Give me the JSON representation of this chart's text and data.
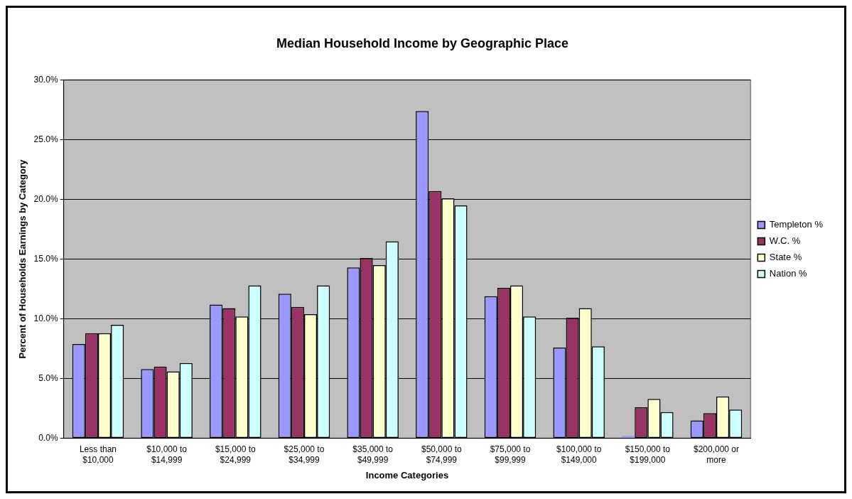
{
  "chart_data": {
    "type": "bar",
    "title": "Median Household Income by Geographic Place",
    "xlabel": "Income Categories",
    "ylabel": "Percent of Households Earnings by Category",
    "categories": [
      "Less than $10,000",
      "$10,000 to $14,999",
      "$15,000 to $24,999",
      "$25,000 to $34,999",
      "$35,000 to $49,999",
      "$50,000 to $74,999",
      "$75,000 to $99,999",
      "$100,000 to $149,000",
      "$150,000 to $199,000",
      "$200,000 or more"
    ],
    "series": [
      {
        "name": "Templeton %",
        "color": "#9999ff",
        "values": [
          7.9,
          5.8,
          11.2,
          12.1,
          14.3,
          27.4,
          11.9,
          7.6,
          0.2,
          1.5
        ]
      },
      {
        "name": "W.C. %",
        "color": "#993366",
        "values": [
          8.8,
          6.0,
          10.9,
          11.0,
          15.1,
          20.7,
          12.6,
          10.1,
          2.6,
          2.1
        ]
      },
      {
        "name": "State %",
        "color": "#ffffcc",
        "values": [
          8.8,
          5.6,
          10.2,
          10.4,
          14.5,
          20.1,
          12.8,
          10.9,
          3.3,
          3.5
        ]
      },
      {
        "name": "Nation %",
        "color": "#ccffff",
        "values": [
          9.5,
          6.3,
          12.8,
          12.8,
          16.5,
          19.5,
          10.2,
          7.7,
          2.2,
          2.4
        ]
      }
    ],
    "ylim": [
      0,
      30
    ],
    "yticks": [
      {
        "value": 0,
        "label": "0.0%"
      },
      {
        "value": 5,
        "label": "5.0%"
      },
      {
        "value": 10,
        "label": "10.0%"
      },
      {
        "value": 15,
        "label": "15.0%"
      },
      {
        "value": 20,
        "label": "20.0%"
      },
      {
        "value": 25,
        "label": "25.0%"
      },
      {
        "value": 30,
        "label": "30.0%"
      }
    ],
    "grid": "y",
    "legend": "right"
  }
}
